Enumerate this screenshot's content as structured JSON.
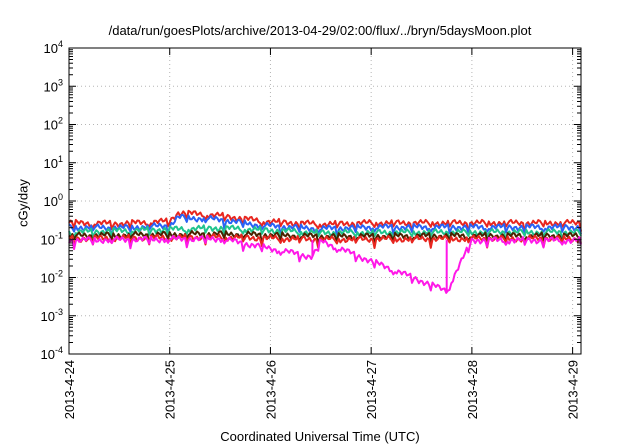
{
  "chart_data": {
    "type": "line",
    "title": "/data/run/goesPlots/archive/2013-04-29/02:00/flux/../bryn/5daysMoon.plot",
    "xlabel": "Coordinated Universal Time (UTC)",
    "ylabel": "cGy/day",
    "yscale": "log",
    "ylim": [
      0.0001,
      10000
    ],
    "xlim": [
      "2013-04-24 00:00",
      "2013-04-29 02:00"
    ],
    "grid": true,
    "x_ticks": [
      "2013-4-24",
      "2013-4-25",
      "2013-4-26",
      "2013-4-27",
      "2013-4-28",
      "2013-4-29"
    ],
    "y_ticks": [
      {
        "value": 0.0001,
        "base": "10",
        "exp": "-4"
      },
      {
        "value": 0.001,
        "base": "10",
        "exp": "-3"
      },
      {
        "value": 0.01,
        "base": "10",
        "exp": "-2"
      },
      {
        "value": 0.1,
        "base": "10",
        "exp": "-1"
      },
      {
        "value": 1,
        "base": "10",
        "exp": "0"
      },
      {
        "value": 10,
        "base": "10",
        "exp": "1"
      },
      {
        "value": 100,
        "base": "10",
        "exp": "2"
      },
      {
        "value": 1000,
        "base": "10",
        "exp": "3"
      },
      {
        "value": 10000,
        "base": "10",
        "exp": "4"
      }
    ],
    "series": [
      {
        "color": "#e8261f",
        "base": 0.27,
        "values": [
          [
            "2013-04-24 00:00",
            0.27
          ],
          [
            "2013-04-24 12:00",
            0.26
          ],
          [
            "2013-04-25 00:00",
            0.3
          ],
          [
            "2013-04-25 02:00",
            0.5
          ],
          [
            "2013-04-25 12:00",
            0.42
          ],
          [
            "2013-04-25 22:00",
            0.3
          ],
          [
            "2013-04-26 12:00",
            0.25
          ],
          [
            "2013-04-27 00:00",
            0.27
          ],
          [
            "2013-04-28 00:00",
            0.27
          ],
          [
            "2013-04-29 02:00",
            0.27
          ]
        ]
      },
      {
        "color": "#2b62f5",
        "base": 0.21,
        "values": [
          [
            "2013-04-24 00:00",
            0.21
          ],
          [
            "2013-04-24 12:00",
            0.2
          ],
          [
            "2013-04-25 00:00",
            0.23
          ],
          [
            "2013-04-25 02:00",
            0.38
          ],
          [
            "2013-04-25 12:00",
            0.33
          ],
          [
            "2013-04-25 22:00",
            0.23
          ],
          [
            "2013-04-26 12:00",
            0.19
          ],
          [
            "2013-04-27 00:00",
            0.21
          ],
          [
            "2013-04-28 00:00",
            0.21
          ],
          [
            "2013-04-29 02:00",
            0.21
          ]
        ]
      },
      {
        "color": "#21c48e",
        "base": 0.155,
        "values": [
          [
            "2013-04-24 00:00",
            0.155
          ],
          [
            "2013-04-25 12:00",
            0.2
          ],
          [
            "2013-04-26 12:00",
            0.15
          ],
          [
            "2013-04-28 00:00",
            0.155
          ],
          [
            "2013-04-29 02:00",
            0.155
          ]
        ]
      },
      {
        "color": "#4a2200",
        "base": 0.125,
        "values": [
          [
            "2013-04-24 00:00",
            0.125
          ],
          [
            "2013-04-25 12:00",
            0.14
          ],
          [
            "2013-04-26 12:00",
            0.12
          ],
          [
            "2013-04-28 00:00",
            0.125
          ],
          [
            "2013-04-29 02:00",
            0.125
          ]
        ]
      },
      {
        "color": "#e8261f",
        "base": 0.105,
        "values": [
          [
            "2013-04-24 00:00",
            0.105
          ],
          [
            "2013-04-25 12:00",
            0.115
          ],
          [
            "2013-04-26 12:00",
            0.1
          ],
          [
            "2013-04-28 00:00",
            0.105
          ],
          [
            "2013-04-29 02:00",
            0.105
          ]
        ]
      },
      {
        "color": "#ff18e8",
        "base": 0.095,
        "values": [
          [
            "2013-04-24 00:00",
            0.095
          ],
          [
            "2013-04-25 12:00",
            0.105
          ],
          [
            "2013-04-26 10:00",
            0.035
          ],
          [
            "2013-04-26 12:00",
            0.09
          ],
          [
            "2013-04-27 18:00",
            0.0045
          ],
          [
            "2013-04-28 00:00",
            0.095
          ],
          [
            "2013-04-29 02:00",
            0.095
          ]
        ]
      }
    ]
  }
}
